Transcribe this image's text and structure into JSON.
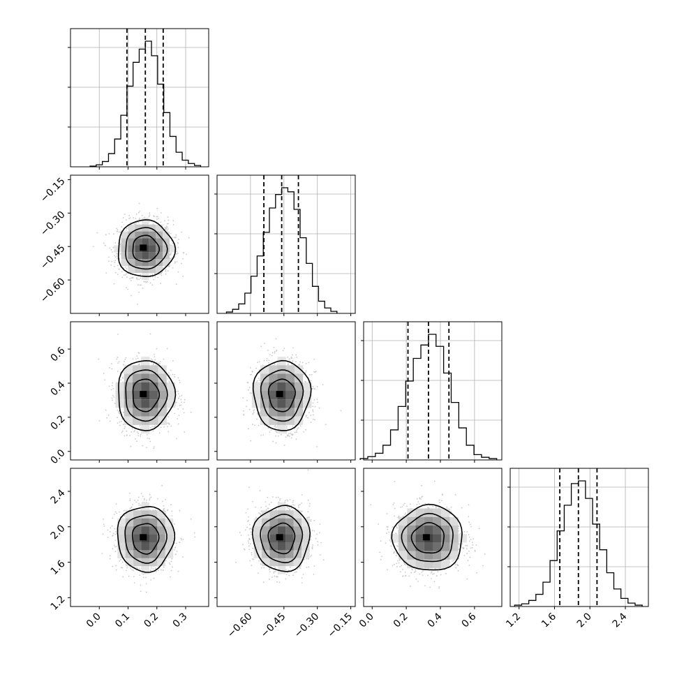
{
  "chart_data": {
    "type": "corner",
    "grid": true,
    "parameters": [
      {
        "ticks": [
          0.0,
          0.1,
          0.2,
          0.3
        ],
        "tick_labels": [
          "0.0",
          "0.1",
          "0.2",
          "0.3"
        ],
        "range": [
          -0.1,
          0.38
        ],
        "mean": 0.16,
        "sd": 0.048,
        "quantiles": [
          0.096,
          0.16,
          0.222
        ]
      },
      {
        "ticks": [
          -0.6,
          -0.45,
          -0.3,
          -0.15
        ],
        "tick_labels": [
          "−0.60",
          "−0.45",
          "−0.30",
          "−0.15"
        ],
        "range": [
          -0.75,
          -0.13
        ],
        "mean": -0.46,
        "sd": 0.062,
        "quantiles": [
          -0.54,
          -0.46,
          -0.385
        ]
      },
      {
        "ticks": [
          0.0,
          0.2,
          0.4,
          0.6
        ],
        "tick_labels": [
          "0.0",
          "0.2",
          "0.4",
          "0.6"
        ],
        "range": [
          -0.05,
          0.76
        ],
        "mean": 0.33,
        "sd": 0.1,
        "quantiles": [
          0.21,
          0.33,
          0.45
        ]
      },
      {
        "ticks": [
          1.2,
          1.6,
          2.0,
          2.4
        ],
        "tick_labels": [
          "1.2",
          "1.6",
          "2.0",
          "2.4"
        ],
        "range": [
          1.1,
          2.66
        ],
        "mean": 1.87,
        "sd": 0.18,
        "quantiles": [
          1.66,
          1.87,
          2.08
        ]
      }
    ],
    "histograms": [
      [
        1,
        3,
        8,
        20,
        42,
        78,
        122,
        158,
        178,
        190,
        168,
        125,
        82,
        46,
        22,
        10,
        5,
        2
      ],
      [
        2,
        6,
        14,
        30,
        55,
        85,
        120,
        156,
        176,
        186,
        180,
        154,
        112,
        74,
        40,
        18,
        8,
        3
      ],
      [
        2,
        5,
        10,
        22,
        45,
        80,
        118,
        152,
        172,
        188,
        170,
        130,
        86,
        48,
        22,
        8,
        4,
        2
      ],
      [
        2,
        4,
        9,
        18,
        36,
        68,
        112,
        150,
        182,
        186,
        160,
        122,
        84,
        50,
        26,
        12,
        5,
        2
      ]
    ]
  }
}
